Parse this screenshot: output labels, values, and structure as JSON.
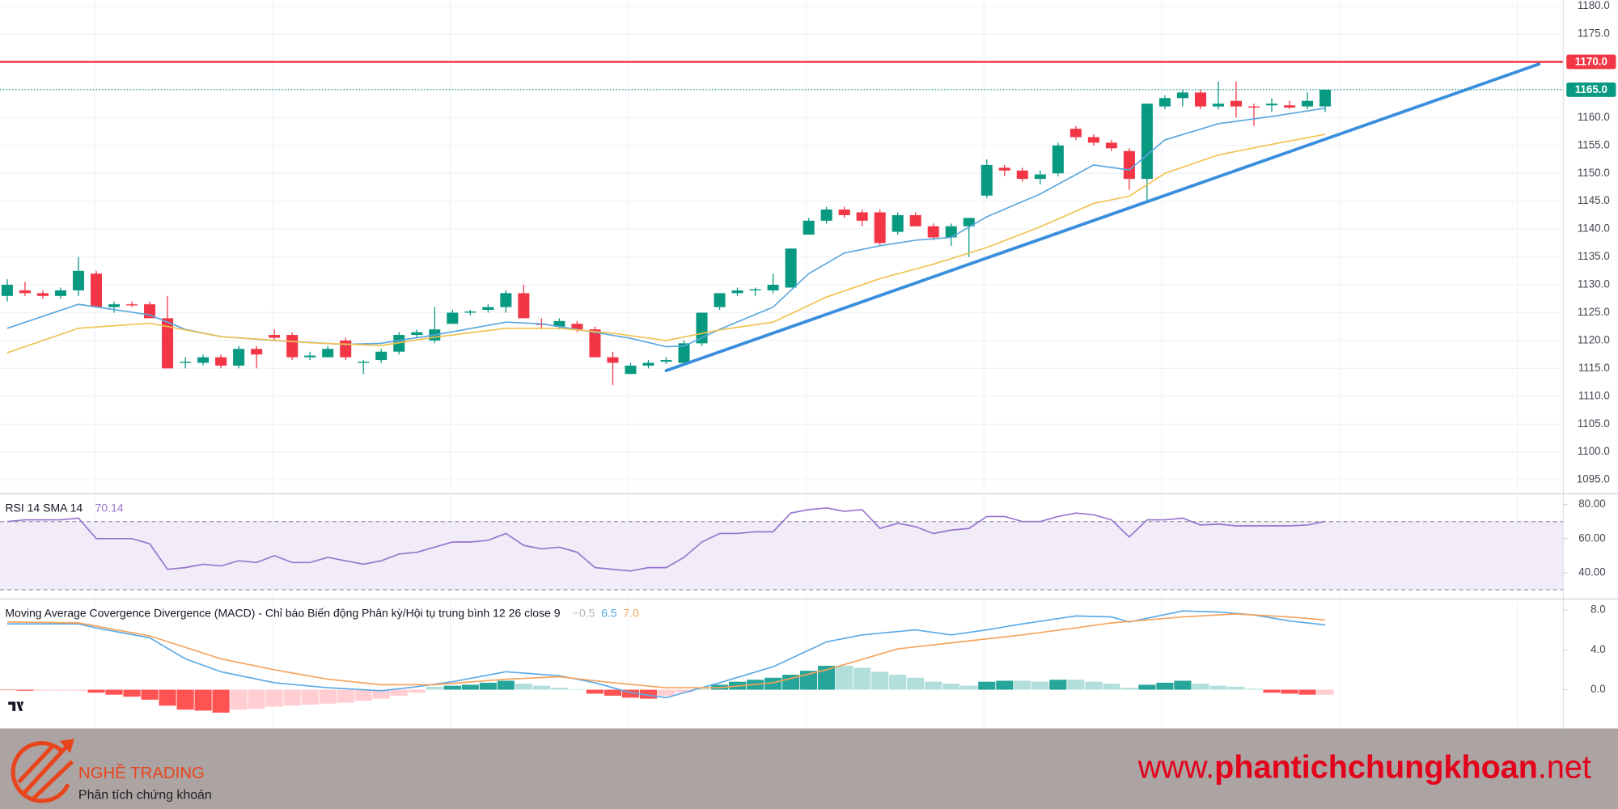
{
  "chart_data": [
    {
      "type": "candlestick",
      "open": [
        1128,
        1129,
        1128.5,
        1128,
        1129,
        1132,
        1126,
        1126.5,
        1126.5,
        1124,
        1116,
        1116,
        1117,
        1115.5,
        1118.5,
        1121,
        1121,
        1117,
        1117,
        1120,
        1116,
        1116.5,
        1118,
        1121,
        1120,
        1123,
        1125,
        1125.5,
        1126,
        1128.5,
        1123,
        1122.5,
        1123,
        1122,
        1117,
        1114,
        1115.5,
        1116.2,
        1116,
        1119.5,
        1126,
        1128.5,
        1129,
        1129,
        1129.5,
        1139,
        1141.5,
        1143.5,
        1143,
        1143,
        1139.5,
        1142.5,
        1140.5,
        1138.5,
        1140.5,
        1146,
        1151,
        1150.5,
        1149,
        1150,
        1158,
        1156.5,
        1155.5,
        1154,
        1149,
        1162,
        1163.5,
        1164.5,
        1162,
        1163,
        1162,
        1162.2,
        1162.2,
        1162,
        1162
      ],
      "high": [
        1131,
        1130.5,
        1129,
        1129.5,
        1135,
        1132.5,
        1127,
        1127,
        1127,
        1128,
        1117,
        1117.5,
        1117.5,
        1119,
        1119,
        1122,
        1121.5,
        1118,
        1119,
        1120.5,
        1116.5,
        1118.5,
        1121.5,
        1122,
        1126,
        1125.5,
        1125.5,
        1126.5,
        1129,
        1130,
        1124,
        1124,
        1123.5,
        1122.5,
        1118,
        1116,
        1116.5,
        1117,
        1120,
        1125,
        1128.5,
        1129.5,
        1129.5,
        1132,
        1136.5,
        1142,
        1144,
        1144,
        1143.5,
        1143.5,
        1143,
        1143,
        1141,
        1141,
        1142,
        1152.5,
        1151.5,
        1151,
        1150.5,
        1155.5,
        1158.5,
        1157,
        1156,
        1154.5,
        1162.5,
        1164,
        1165,
        1165,
        1166.5,
        1166.5,
        1162.5,
        1163.5,
        1163,
        1164.5,
        1165
      ],
      "low": [
        1127,
        1128,
        1127.5,
        1127.5,
        1128,
        1126,
        1125,
        1126,
        1124,
        1115,
        1115,
        1115.5,
        1115,
        1115,
        1115,
        1120,
        1116.5,
        1116.5,
        1117,
        1116.5,
        1114,
        1116,
        1117.5,
        1120.5,
        1119.5,
        1123,
        1124.5,
        1125,
        1125,
        1124,
        1122,
        1122,
        1121.5,
        1117,
        1112,
        1114,
        1115,
        1115.8,
        1115.5,
        1119,
        1125.5,
        1128,
        1128,
        1128.5,
        1129.5,
        1139,
        1141,
        1142,
        1140.5,
        1137,
        1139,
        1140.5,
        1138,
        1137,
        1135,
        1145.5,
        1149.5,
        1148.5,
        1148,
        1149.5,
        1156,
        1155,
        1154,
        1147,
        1145,
        1161.5,
        1162,
        1161.5,
        1161.5,
        1160,
        1158.5,
        1161,
        1161.5,
        1161.5,
        1161
      ],
      "close": [
        1130,
        1128.5,
        1128,
        1129,
        1132.5,
        1126,
        1126.5,
        1126.3,
        1124,
        1115,
        1116.2,
        1117,
        1115.5,
        1118.5,
        1117.5,
        1120.5,
        1117,
        1117.3,
        1118.5,
        1117,
        1116.2,
        1118,
        1121,
        1121.5,
        1122,
        1125,
        1125.2,
        1126,
        1128.5,
        1124,
        1122.8,
        1123.5,
        1122,
        1117,
        1116,
        1115.5,
        1116,
        1116.5,
        1119.5,
        1125,
        1128.5,
        1129,
        1129.2,
        1130,
        1136.5,
        1141.5,
        1143.5,
        1142.5,
        1141.5,
        1137.5,
        1142.5,
        1140.5,
        1138.5,
        1140.5,
        1142,
        1151.5,
        1150.5,
        1149,
        1149.8,
        1155,
        1156.5,
        1155.5,
        1154.5,
        1149,
        1162.5,
        1163.5,
        1164.5,
        1162,
        1162.5,
        1162,
        1161.8,
        1162.5,
        1161.8,
        1163,
        1165
      ],
      "up_color": "#089981",
      "down_color": "#f23645",
      "series": [
        {
          "color": "#5aa7de",
          "x": [
            0,
            4,
            8,
            10,
            12,
            15,
            19,
            21,
            24,
            28,
            30,
            32,
            35,
            37,
            38,
            40,
            43,
            45,
            47,
            49,
            51,
            53,
            55,
            58,
            61,
            63,
            65,
            68,
            71,
            74
          ],
          "values": [
            1122.2,
            1126.5,
            1124.6,
            1122,
            1120.7,
            1120,
            1119.3,
            1119.5,
            1121,
            1123.3,
            1123,
            1122,
            1120.4,
            1118.9,
            1119,
            1122,
            1126,
            1132,
            1135.7,
            1137,
            1138,
            1138.5,
            1142.2,
            1146.3,
            1151.5,
            1150.6,
            1156,
            1158.9,
            1160.2,
            1161.7
          ]
        },
        {
          "color": "#f2c14e",
          "x": [
            0,
            4,
            8,
            12,
            17,
            21,
            24,
            28,
            31,
            34,
            37,
            40,
            43,
            46,
            49,
            52,
            55,
            58,
            61,
            63,
            65,
            68,
            71,
            74
          ],
          "values": [
            1117.8,
            1122.2,
            1123.1,
            1120.7,
            1119.6,
            1119.1,
            1120.6,
            1122.2,
            1122.2,
            1121.3,
            1120,
            1121.9,
            1123.3,
            1127.8,
            1131.1,
            1133.7,
            1136.7,
            1140.4,
            1144.6,
            1145.9,
            1150,
            1153.3,
            1155.2,
            1157
          ]
        }
      ],
      "trendline": {
        "x": [
          37,
          86
        ],
        "values": [
          1114.6,
          1169.6
        ],
        "color": "#3a8fdc"
      },
      "levels": [
        {
          "value": 1170,
          "label": "1170.0",
          "color": "#f23645",
          "style": "solid"
        },
        {
          "value": 1165,
          "label": "1165.0",
          "color": "#089981",
          "style": "dotted"
        }
      ],
      "ylim": [
        1092.6,
        1181.1
      ],
      "yticks": [
        {
          "value": 1095,
          "label": "1095.0"
        },
        {
          "value": 1100,
          "label": "1100.0"
        },
        {
          "value": 1105,
          "label": "1105.0"
        },
        {
          "value": 1110,
          "label": "1110.0"
        },
        {
          "value": 1115,
          "label": "1115.0"
        },
        {
          "value": 1120,
          "label": "1120.0"
        },
        {
          "value": 1125,
          "label": "1125.0"
        },
        {
          "value": 1130,
          "label": "1130.0"
        },
        {
          "value": 1135,
          "label": "1135.0"
        },
        {
          "value": 1140,
          "label": "1140.0"
        },
        {
          "value": 1145,
          "label": "1145.0"
        },
        {
          "value": 1150,
          "label": "1150.0"
        },
        {
          "value": 1155,
          "label": "1155.0"
        },
        {
          "value": 1160,
          "label": "1160.0"
        },
        {
          "value": 1165,
          "label": "1165.0"
        },
        {
          "value": 1170,
          "label": "1170.0"
        },
        {
          "value": 1175,
          "label": "1175.0"
        },
        {
          "value": 1180,
          "label": "1180.0"
        }
      ],
      "grid": true
    },
    {
      "type": "line",
      "title": "RSI 14 SMA 14",
      "header_value": 70.14,
      "color": "#9575cd",
      "values": [
        70,
        71,
        71,
        71,
        72,
        60,
        60,
        60,
        57,
        42,
        43,
        45,
        44,
        47,
        46,
        50,
        46,
        46,
        49,
        47,
        45,
        47,
        51,
        52,
        55,
        58,
        58,
        59,
        63,
        56,
        54,
        55,
        52,
        43,
        42,
        41,
        43,
        43,
        49,
        58,
        63,
        63,
        64,
        64,
        75,
        77,
        78,
        76,
        77,
        66,
        69,
        67,
        63,
        65,
        66,
        73,
        73,
        70,
        70,
        73,
        75,
        74,
        71,
        61,
        71,
        71,
        72,
        68,
        68.5,
        67.5,
        67.5,
        67.5,
        67.5,
        68,
        70.14
      ],
      "band": [
        30,
        70
      ],
      "band_color": "#ede7f6",
      "ylim": [
        26.1,
        84.8
      ],
      "yticks": [
        {
          "value": 40,
          "label": "40.00"
        },
        {
          "value": 60,
          "label": "60.00"
        },
        {
          "value": 80,
          "label": "80.00"
        }
      ]
    },
    {
      "type": "macd",
      "title": "Moving Average Covergence Divergence (MACD) - Chỉ báo Biến động Phân kỳ/Hội tụ trung bình 12 26 close 9",
      "header_values": [
        {
          "value": -0.5,
          "label": "−0.5",
          "color": "#b2b5be"
        },
        {
          "value": 6.5,
          "label": "6.5",
          "color": "#5aa9e6"
        },
        {
          "value": 7.0,
          "label": "7.0",
          "color": "#f5a35c"
        }
      ],
      "histogram": [
        -0.05,
        -0.1,
        -0.1,
        -0.1,
        -0.1,
        -0.3,
        -0.5,
        -0.7,
        -1.0,
        -1.6,
        -2.0,
        -2.1,
        -2.3,
        -2.0,
        -1.9,
        -1.7,
        -1.6,
        -1.5,
        -1.4,
        -1.3,
        -1.1,
        -0.9,
        -0.6,
        -0.3,
        0.3,
        0.4,
        0.5,
        0.7,
        0.9,
        0.6,
        0.4,
        0.2,
        0.05,
        -0.4,
        -0.6,
        -0.8,
        -0.9,
        -0.6,
        -0.3,
        0.1,
        0.5,
        0.8,
        1.0,
        1.2,
        1.5,
        1.9,
        2.4,
        2.4,
        2.2,
        1.8,
        1.5,
        1.2,
        0.8,
        0.6,
        0.4,
        0.8,
        0.9,
        0.9,
        0.8,
        1.0,
        1.0,
        0.8,
        0.6,
        0.2,
        0.5,
        0.7,
        0.9,
        0.6,
        0.4,
        0.3,
        0.1,
        -0.3,
        -0.4,
        -0.5,
        -0.5
      ],
      "histogram_colors": {
        "positive_rising": "#26a69a",
        "positive_falling": "#b2dfdb",
        "negative_falling": "#ff5252",
        "negative_rising": "#ffcdd2"
      },
      "series": [
        {
          "color": "#5aa9e6",
          "x": [
            0,
            4,
            5,
            8,
            10,
            12,
            15,
            18,
            21,
            23,
            25,
            28,
            31,
            33,
            35,
            37,
            38,
            40,
            43,
            46,
            48,
            51,
            53,
            55,
            57,
            60,
            62,
            63,
            66,
            68,
            70,
            72,
            74
          ],
          "values": [
            6.6,
            6.6,
            6.2,
            5.2,
            3.1,
            1.8,
            0.7,
            0.2,
            -0.1,
            0.3,
            0.8,
            1.8,
            1.4,
            0.7,
            -0.3,
            -0.8,
            -0.3,
            0.7,
            2.3,
            4.8,
            5.5,
            6.0,
            5.5,
            6.0,
            6.6,
            7.4,
            7.3,
            6.8,
            7.9,
            7.8,
            7.5,
            6.9,
            6.5
          ]
        },
        {
          "color": "#f5a35c",
          "x": [
            0,
            4,
            8,
            12,
            15,
            18,
            21,
            24,
            28,
            31,
            34,
            37,
            40,
            43,
            46,
            50,
            53,
            57,
            60,
            62,
            66,
            69,
            72,
            74
          ],
          "values": [
            6.8,
            6.7,
            5.4,
            3.1,
            2.0,
            1.05,
            0.5,
            0.5,
            1.05,
            1.3,
            0.7,
            0.2,
            0.2,
            0.7,
            2.0,
            4.1,
            4.7,
            5.5,
            6.2,
            6.7,
            7.3,
            7.6,
            7.3,
            7.0
          ]
        }
      ],
      "ylim": [
        -3.79,
        8.84
      ],
      "yticks": [
        {
          "value": 0,
          "label": "0.0"
        },
        {
          "value": 4,
          "label": "4.0"
        },
        {
          "value": 8,
          "label": "8.0"
        }
      ]
    }
  ],
  "footer": {
    "brand": "NGHỀ TRADING",
    "tagline": "Phân tích chứng khoán",
    "website": {
      "prefix": "www.",
      "domain": "phantichchungkhoan",
      "suffix": ".net"
    }
  }
}
